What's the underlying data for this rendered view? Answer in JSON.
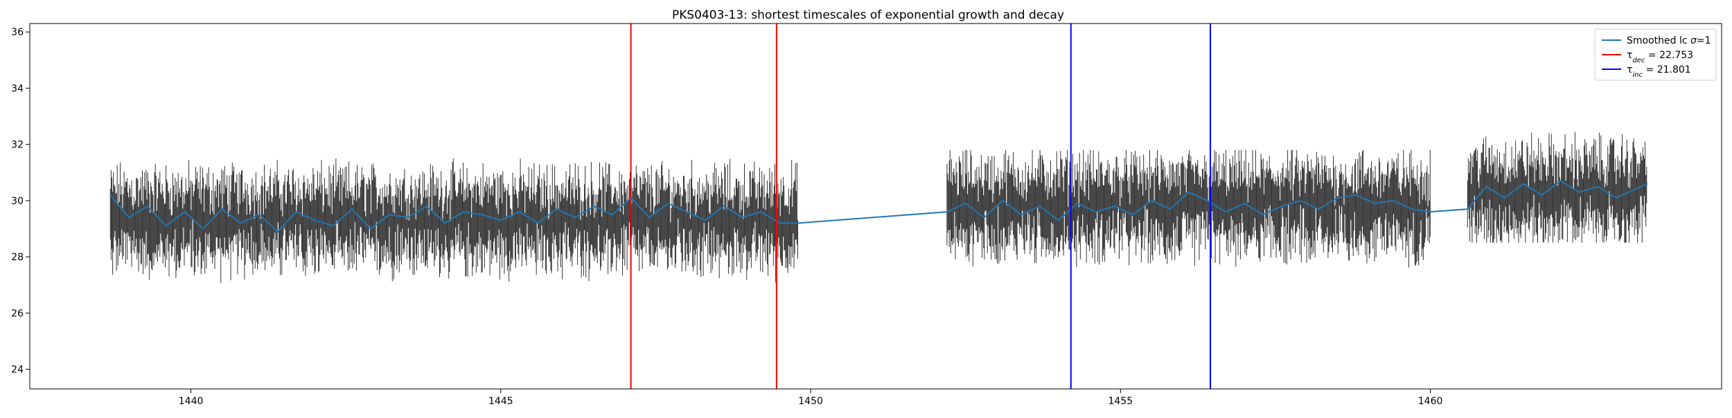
{
  "chart_data": {
    "type": "line",
    "title": "PKS0403-13: shortest timescales of exponential growth and decay",
    "xlabel": "",
    "ylabel": "",
    "xlim": [
      1437.4,
      1464.7
    ],
    "ylim": [
      23.3,
      36.3
    ],
    "xticks": [
      1440,
      1445,
      1450,
      1455,
      1460
    ],
    "yticks": [
      24,
      26,
      28,
      30,
      32,
      34,
      36
    ],
    "grid": false,
    "legend": {
      "placement": "top-right",
      "entries": [
        {
          "label": "Smoothed lc σ=1",
          "color": "#1f77b4",
          "key": "smoothed"
        },
        {
          "label": "τ_dec = 22.753",
          "color": "#ff0000",
          "key": "tau_dec"
        },
        {
          "label": "τ_inc = 21.801",
          "color": "#0000ff",
          "key": "tau_inc"
        }
      ]
    },
    "observation_segments": [
      {
        "x_start": 1438.7,
        "x_end": 1449.8,
        "flux_level": 29.3,
        "scatter_low": 27.0,
        "scatter_high": 31.5
      },
      {
        "x_start": 1452.2,
        "x_end": 1460.0,
        "flux_level": 29.8,
        "scatter_low": 27.5,
        "scatter_high": 31.8
      },
      {
        "x_start": 1460.6,
        "x_end": 1463.5,
        "flux_level": 30.3,
        "scatter_low": 28.5,
        "scatter_high": 33.2
      }
    ],
    "error_bar_color": "#333333",
    "series": [
      {
        "name": "Smoothed lc σ=1",
        "color": "#1f77b4",
        "x": [
          1438.7,
          1439.0,
          1439.3,
          1439.6,
          1439.9,
          1440.2,
          1440.5,
          1440.8,
          1441.1,
          1441.4,
          1441.7,
          1442.0,
          1442.3,
          1442.6,
          1442.9,
          1443.2,
          1443.5,
          1443.8,
          1444.1,
          1444.4,
          1444.7,
          1445.0,
          1445.3,
          1445.6,
          1445.9,
          1446.2,
          1446.5,
          1446.8,
          1447.1,
          1447.4,
          1447.7,
          1448.0,
          1448.3,
          1448.6,
          1448.9,
          1449.2,
          1449.5,
          1449.8,
          1452.2,
          1452.5,
          1452.8,
          1453.1,
          1453.4,
          1453.7,
          1454.0,
          1454.3,
          1454.6,
          1454.9,
          1455.2,
          1455.5,
          1455.8,
          1456.1,
          1456.4,
          1456.7,
          1457.0,
          1457.3,
          1457.6,
          1457.9,
          1458.2,
          1458.5,
          1458.8,
          1459.1,
          1459.4,
          1459.7,
          1460.0,
          1460.6,
          1460.9,
          1461.2,
          1461.5,
          1461.8,
          1462.1,
          1462.4,
          1462.7,
          1463.0,
          1463.3,
          1463.5
        ],
        "y": [
          30.2,
          29.4,
          29.8,
          29.1,
          29.6,
          29.0,
          29.7,
          29.2,
          29.5,
          28.9,
          29.6,
          29.3,
          29.1,
          29.7,
          29.0,
          29.5,
          29.4,
          29.8,
          29.2,
          29.6,
          29.5,
          29.3,
          29.6,
          29.2,
          29.7,
          29.4,
          29.8,
          29.5,
          30.1,
          29.4,
          29.9,
          29.6,
          29.3,
          29.8,
          29.4,
          29.6,
          29.2,
          29.2,
          29.6,
          29.9,
          29.4,
          30.0,
          29.5,
          29.8,
          29.3,
          29.9,
          29.6,
          29.8,
          29.5,
          30.0,
          29.7,
          30.3,
          30.0,
          29.6,
          29.9,
          29.5,
          29.8,
          30.0,
          29.7,
          30.1,
          30.2,
          29.9,
          30.0,
          29.7,
          29.6,
          29.7,
          30.5,
          30.1,
          30.6,
          30.2,
          30.7,
          30.3,
          30.5,
          30.1,
          30.4,
          30.6
        ]
      }
    ],
    "vertical_lines": [
      {
        "x": 1447.1,
        "color": "#ff0000",
        "group": "τ_dec = 22.753"
      },
      {
        "x": 1449.45,
        "color": "#ff0000",
        "group": "τ_dec = 22.753"
      },
      {
        "x": 1454.2,
        "color": "#0000ff",
        "group": "τ_inc = 21.801"
      },
      {
        "x": 1456.45,
        "color": "#0000ff",
        "group": "τ_inc = 21.801"
      }
    ]
  }
}
